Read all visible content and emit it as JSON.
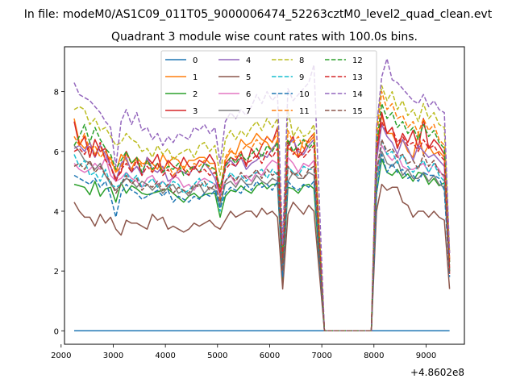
{
  "chart_data": {
    "type": "line",
    "suptitle": "In file: modeM0/AS1C09_011T05_9000006474_52263cztM0_level2_quad_clean.evt",
    "title": "Quadrant 3 module wise count rates with 100.0s bins.",
    "xlabel": "",
    "ylabel": "",
    "offset_label": "+4.8602e8",
    "xlim": [
      2065,
      9735
    ],
    "ylim": [
      -0.45,
      9.5
    ],
    "xticks": [
      2000,
      3000,
      4000,
      5000,
      6000,
      7000,
      8000,
      9000
    ],
    "yticks": [
      0,
      2,
      4,
      6,
      8
    ],
    "legend_position": "top-center",
    "legend_columns": 4,
    "x": [
      2250,
      2350,
      2450,
      2550,
      2650,
      2750,
      2850,
      2950,
      3050,
      3150,
      3250,
      3350,
      3450,
      3550,
      3650,
      3750,
      3850,
      3950,
      4050,
      4150,
      4250,
      4350,
      4450,
      4550,
      4650,
      4750,
      4850,
      4950,
      5050,
      5150,
      5250,
      5350,
      5450,
      5550,
      5650,
      5750,
      5850,
      5950,
      6050,
      6150,
      6250,
      6350,
      6450,
      6550,
      6650,
      6750,
      6850,
      7050,
      7950,
      8050,
      8150,
      8250,
      8350,
      8450,
      8550,
      8650,
      8750,
      8850,
      8950,
      9050,
      9150,
      9250,
      9350,
      9450
    ],
    "series": [
      {
        "name": "0",
        "color": "#1f77b4",
        "dash": "solid",
        "values": [
          0,
          0,
          0,
          0,
          0,
          0,
          0,
          0,
          0,
          0,
          0,
          0,
          0,
          0,
          0,
          0,
          0,
          0,
          0,
          0,
          0,
          0,
          0,
          0,
          0,
          0,
          0,
          0,
          0,
          0,
          0,
          0,
          0,
          0,
          0,
          0,
          0,
          0,
          0,
          0,
          0,
          0,
          0,
          0,
          0,
          0,
          0,
          0,
          0,
          0,
          0,
          0,
          0,
          0,
          0,
          0,
          0,
          0,
          0,
          0,
          0,
          0,
          0,
          0
        ]
      },
      {
        "name": "1",
        "color": "#ff7f0e",
        "dash": "solid",
        "values": [
          7.1,
          6.3,
          6.1,
          6.3,
          5.9,
          6.2,
          5.7,
          5.8,
          5.3,
          5.9,
          5.7,
          5.4,
          5.8,
          5.6,
          5.6,
          5.6,
          5.4,
          5.9,
          5.6,
          5.8,
          5.7,
          5.4,
          5.7,
          5.7,
          5.8,
          5.8,
          5.6,
          5.6,
          4.4,
          5.7,
          6.0,
          5.9,
          6.4,
          6.2,
          6.3,
          6.6,
          6.4,
          6.3,
          6.0,
          6.4,
          2.3,
          6.1,
          6.0,
          5.8,
          6.4,
          6.3,
          6.5,
          0,
          0,
          6.3,
          7.2,
          6.6,
          6.6,
          6.2,
          6.4,
          6.0,
          5.8,
          6.6,
          5.9,
          6.2,
          5.9,
          6.0,
          5.8,
          2.3
        ]
      },
      {
        "name": "2",
        "color": "#2ca02c",
        "dash": "solid",
        "values": [
          4.9,
          4.85,
          4.8,
          4.55,
          5.0,
          4.5,
          4.75,
          4.8,
          4.3,
          4.95,
          4.6,
          4.85,
          4.75,
          4.6,
          4.55,
          4.6,
          4.65,
          4.7,
          4.75,
          4.6,
          4.45,
          4.3,
          4.5,
          4.6,
          4.45,
          4.55,
          4.6,
          4.6,
          3.8,
          4.5,
          4.7,
          4.65,
          4.85,
          4.7,
          4.6,
          4.85,
          4.95,
          4.75,
          4.9,
          4.9,
          1.7,
          4.8,
          4.75,
          4.6,
          4.85,
          4.9,
          4.75,
          0,
          0,
          4.6,
          5.75,
          5.3,
          5.2,
          5.4,
          5.1,
          5.25,
          5.0,
          5.3,
          5.25,
          4.9,
          5.1,
          4.85,
          4.95,
          2.0
        ]
      },
      {
        "name": "3",
        "color": "#d62728",
        "dash": "solid",
        "values": [
          7.0,
          6.2,
          6.5,
          5.8,
          6.4,
          6.0,
          6.1,
          5.5,
          5.1,
          5.3,
          6.0,
          5.6,
          5.8,
          5.2,
          5.8,
          5.6,
          5.9,
          5.3,
          5.7,
          5.5,
          5.4,
          5.8,
          5.5,
          5.4,
          5.7,
          5.6,
          5.9,
          5.6,
          4.5,
          5.6,
          5.8,
          5.7,
          6.0,
          5.5,
          6.1,
          5.8,
          6.2,
          6.5,
          6.3,
          6.8,
          2.1,
          6.2,
          6.5,
          5.8,
          6.0,
          6.4,
          6.6,
          0,
          0,
          5.9,
          7.3,
          6.6,
          6.8,
          6.1,
          6.6,
          6.3,
          6.7,
          6.1,
          7.1,
          6.1,
          6.4,
          6.2,
          5.9,
          1.9
        ]
      },
      {
        "name": "4",
        "color": "#9467bd",
        "dash": "solid",
        "values": [
          6.1,
          6.2,
          6.0,
          6.3,
          5.8,
          6.2,
          5.9,
          5.5,
          5.0,
          5.6,
          5.8,
          5.3,
          5.5,
          5.2,
          5.8,
          5.4,
          5.3,
          5.5,
          5.0,
          5.1,
          5.4,
          5.3,
          5.2,
          5.5,
          5.3,
          5.6,
          5.4,
          5.1,
          4.5,
          5.5,
          5.7,
          5.5,
          5.8,
          5.4,
          5.6,
          5.7,
          5.9,
          5.8,
          6.1,
          6.3,
          2.2,
          6.2,
          6.4,
          6.0,
          5.9,
          6.2,
          6.4,
          0,
          0,
          5.7,
          6.9,
          6.5,
          6.3,
          5.9,
          6.4,
          6.1,
          5.7,
          6.2,
          6.0,
          5.8,
          5.9,
          5.7,
          5.5,
          2.4
        ]
      },
      {
        "name": "5",
        "color": "#8c564b",
        "dash": "solid",
        "values": [
          4.3,
          4.0,
          3.8,
          3.8,
          3.5,
          3.9,
          3.6,
          3.8,
          3.4,
          3.2,
          3.7,
          3.6,
          3.6,
          3.5,
          3.4,
          3.9,
          3.7,
          3.8,
          3.4,
          3.5,
          3.4,
          3.3,
          3.4,
          3.6,
          3.5,
          3.6,
          3.7,
          3.5,
          3.4,
          3.7,
          4.0,
          3.8,
          3.9,
          4.0,
          4.0,
          3.8,
          4.1,
          3.9,
          4.0,
          3.8,
          1.4,
          3.9,
          4.3,
          4.1,
          3.9,
          4.2,
          4.0,
          0,
          0,
          4.0,
          4.9,
          4.7,
          4.8,
          4.8,
          4.3,
          4.2,
          3.8,
          4.0,
          4.0,
          3.8,
          4.0,
          3.8,
          3.7,
          1.4
        ]
      },
      {
        "name": "6",
        "color": "#e377c2",
        "dash": "solid",
        "values": [
          5.6,
          5.4,
          5.3,
          5.4,
          5.6,
          5.4,
          5.8,
          5.2,
          5.0,
          5.1,
          5.3,
          5.1,
          5.0,
          4.8,
          5.1,
          5.2,
          4.9,
          5.0,
          4.8,
          5.2,
          5.1,
          4.8,
          4.9,
          4.7,
          5.0,
          5.1,
          5.0,
          4.9,
          4.6,
          5.0,
          5.2,
          4.9,
          5.1,
          5.2,
          5.0,
          5.3,
          5.2,
          5.5,
          5.7,
          5.6,
          2.5,
          5.8,
          5.6,
          5.3,
          5.6,
          5.5,
          5.7,
          0,
          0,
          5.3,
          6.2,
          5.9,
          5.7,
          5.9,
          5.5,
          5.4,
          5.4,
          5.5,
          5.6,
          5.3,
          5.6,
          5.4,
          5.1,
          2.6
        ]
      },
      {
        "name": "7",
        "color": "#7f7f7f",
        "dash": "solid",
        "values": [
          6.2,
          6.0,
          5.7,
          5.6,
          5.4,
          5.6,
          5.2,
          4.9,
          4.7,
          4.9,
          5.1,
          5.0,
          4.8,
          5.0,
          4.9,
          4.7,
          4.9,
          4.6,
          4.8,
          4.9,
          4.6,
          4.7,
          4.5,
          4.8,
          4.9,
          4.6,
          4.8,
          4.7,
          4.2,
          4.9,
          5.0,
          4.8,
          5.1,
          4.9,
          4.9,
          5.2,
          5.0,
          4.9,
          5.1,
          5.0,
          1.9,
          5.0,
          5.3,
          5.1,
          5.1,
          5.3,
          5.2,
          0,
          0,
          5.0,
          6.0,
          5.6,
          5.5,
          5.7,
          5.2,
          5.4,
          5.1,
          5.1,
          5.3,
          5.0,
          5.2,
          4.9,
          4.8,
          2.3
        ]
      },
      {
        "name": "8",
        "color": "#bcbd22",
        "dash": "dashed",
        "values": [
          7.4,
          7.5,
          7.4,
          6.9,
          7.1,
          6.7,
          6.8,
          6.5,
          6.2,
          6.3,
          6.6,
          6.4,
          6.3,
          6.0,
          6.1,
          5.8,
          6.2,
          5.9,
          6.1,
          5.7,
          5.9,
          6.0,
          6.1,
          5.8,
          6.2,
          6.3,
          6.0,
          6.2,
          5.2,
          6.4,
          6.7,
          6.4,
          6.7,
          6.5,
          6.8,
          7.0,
          6.7,
          7.1,
          6.8,
          7.1,
          2.8,
          7.4,
          6.5,
          6.8,
          6.5,
          6.6,
          6.9,
          0,
          0,
          6.8,
          8.2,
          7.7,
          8.0,
          7.4,
          7.7,
          7.2,
          7.4,
          7.0,
          7.6,
          7.1,
          7.3,
          6.9,
          6.8,
          2.6
        ]
      },
      {
        "name": "9",
        "color": "#17becf",
        "dash": "dashed",
        "values": [
          5.9,
          5.5,
          5.7,
          5.2,
          5.3,
          5.0,
          5.4,
          4.9,
          4.8,
          4.9,
          5.3,
          5.0,
          5.2,
          4.8,
          4.9,
          5.1,
          4.8,
          5.0,
          4.8,
          5.0,
          4.9,
          4.6,
          4.7,
          4.9,
          5.1,
          4.8,
          5.0,
          4.9,
          4.0,
          5.0,
          5.3,
          5.1,
          5.2,
          5.0,
          5.2,
          5.3,
          5.4,
          5.1,
          5.4,
          5.2,
          2.2,
          5.5,
          5.3,
          5.2,
          5.5,
          5.4,
          5.4,
          0,
          0,
          5.0,
          6.4,
          5.9,
          6.0,
          5.6,
          5.9,
          5.5,
          5.3,
          5.5,
          5.7,
          5.3,
          5.6,
          5.2,
          5.0,
          2.0
        ]
      },
      {
        "name": "10",
        "color": "#1f77b4",
        "dash": "dashed",
        "values": [
          5.2,
          5.1,
          5.0,
          4.9,
          5.1,
          4.8,
          5.0,
          4.5,
          3.8,
          4.6,
          4.9,
          4.7,
          4.6,
          4.4,
          4.5,
          4.6,
          4.7,
          4.5,
          4.7,
          4.3,
          4.5,
          4.4,
          4.3,
          4.5,
          4.4,
          4.6,
          4.5,
          4.7,
          4.1,
          4.6,
          4.8,
          4.7,
          4.6,
          4.9,
          4.7,
          5.0,
          4.8,
          4.9,
          4.7,
          5.0,
          1.8,
          5.0,
          4.8,
          4.7,
          4.9,
          4.8,
          5.0,
          0,
          0,
          4.6,
          5.9,
          5.3,
          5.6,
          5.3,
          5.4,
          5.1,
          5.2,
          5.0,
          5.3,
          5.2,
          5.2,
          5.1,
          4.7,
          1.8
        ]
      },
      {
        "name": "11",
        "color": "#ff7f0e",
        "dash": "dashed",
        "values": [
          6.5,
          6.2,
          6.6,
          6.0,
          6.2,
          5.8,
          6.0,
          5.7,
          5.3,
          5.5,
          5.9,
          5.6,
          5.8,
          5.5,
          5.7,
          5.3,
          5.6,
          5.4,
          5.6,
          5.2,
          5.4,
          5.5,
          5.3,
          5.6,
          5.5,
          5.7,
          5.4,
          5.5,
          4.7,
          5.8,
          6.1,
          5.8,
          6.0,
          6.2,
          6.1,
          6.4,
          6.2,
          6.5,
          6.3,
          6.6,
          2.5,
          6.7,
          6.3,
          6.5,
          6.1,
          6.4,
          6.6,
          0,
          0,
          6.5,
          8.0,
          7.4,
          7.6,
          7.1,
          7.2,
          6.8,
          7.0,
          6.6,
          7.1,
          6.7,
          6.9,
          6.4,
          6.2,
          2.4
        ]
      },
      {
        "name": "12",
        "color": "#2ca02c",
        "dash": "dashed",
        "values": [
          6.2,
          6.5,
          6.9,
          6.3,
          6.8,
          6.4,
          6.1,
          5.9,
          5.4,
          5.7,
          6.0,
          5.6,
          5.8,
          5.3,
          5.7,
          5.4,
          5.6,
          5.3,
          5.5,
          5.4,
          5.6,
          5.2,
          5.4,
          5.5,
          5.3,
          5.6,
          5.5,
          5.4,
          4.8,
          5.5,
          5.8,
          5.6,
          5.9,
          5.7,
          5.9,
          6.1,
          5.8,
          6.2,
          6.0,
          6.3,
          2.3,
          6.4,
          6.0,
          6.2,
          6.4,
          6.1,
          6.3,
          0,
          0,
          6.2,
          7.6,
          7.1,
          7.3,
          6.8,
          7.0,
          6.6,
          6.8,
          6.4,
          6.9,
          6.5,
          6.7,
          6.3,
          6.1,
          2.2
        ]
      },
      {
        "name": "13",
        "color": "#d62728",
        "dash": "dashed",
        "values": [
          6.0,
          6.1,
          5.9,
          6.2,
          5.8,
          6.3,
          5.7,
          5.5,
          5.0,
          5.4,
          5.6,
          5.3,
          5.7,
          5.2,
          5.5,
          5.3,
          5.6,
          5.2,
          5.4,
          5.1,
          5.3,
          5.4,
          5.2,
          5.5,
          5.3,
          5.4,
          5.2,
          5.3,
          4.6,
          5.4,
          5.6,
          5.5,
          5.8,
          5.6,
          5.7,
          5.9,
          5.6,
          6.0,
          5.8,
          6.1,
          2.4,
          6.3,
          5.9,
          6.1,
          5.8,
          6.0,
          6.2,
          0,
          0,
          6.0,
          7.0,
          6.6,
          6.8,
          6.3,
          6.5,
          6.2,
          6.3,
          6.0,
          6.4,
          6.1,
          6.2,
          5.9,
          5.7,
          2.1
        ]
      },
      {
        "name": "14",
        "color": "#9467bd",
        "dash": "dashed",
        "values": [
          8.3,
          7.9,
          7.8,
          7.7,
          7.5,
          7.3,
          7.0,
          6.8,
          5.5,
          7.0,
          7.4,
          6.9,
          7.3,
          6.7,
          6.8,
          6.4,
          6.6,
          6.2,
          6.5,
          6.3,
          6.6,
          6.5,
          6.4,
          6.8,
          6.7,
          6.9,
          6.6,
          6.8,
          5.6,
          7.0,
          7.3,
          7.1,
          7.4,
          7.2,
          7.5,
          7.9,
          7.6,
          8.0,
          7.7,
          7.9,
          2.9,
          8.1,
          7.7,
          7.9,
          8.1,
          8.3,
          8.9,
          0,
          0,
          6.8,
          8.5,
          9.1,
          8.4,
          8.3,
          8.1,
          7.9,
          7.7,
          7.6,
          7.9,
          7.5,
          7.7,
          7.4,
          7.3,
          2.6
        ]
      },
      {
        "name": "15",
        "color": "#8c564b",
        "dash": "dashed",
        "values": [
          5.5,
          5.6,
          5.4,
          5.7,
          5.3,
          5.5,
          5.2,
          5.0,
          4.6,
          4.9,
          5.2,
          4.9,
          5.1,
          4.7,
          4.9,
          4.8,
          5.0,
          4.7,
          4.9,
          4.6,
          4.8,
          4.7,
          4.6,
          4.9,
          4.8,
          5.0,
          4.7,
          4.9,
          4.3,
          5.0,
          5.2,
          5.0,
          5.3,
          5.1,
          5.2,
          5.4,
          5.1,
          5.4,
          5.2,
          5.3,
          2.0,
          5.5,
          5.2,
          5.3,
          5.1,
          5.4,
          5.5,
          0,
          0,
          5.3,
          6.4,
          6.0,
          6.1,
          5.8,
          5.9,
          5.6,
          5.7,
          5.4,
          5.9,
          5.5,
          5.7,
          5.3,
          5.2,
          1.9
        ]
      }
    ]
  }
}
